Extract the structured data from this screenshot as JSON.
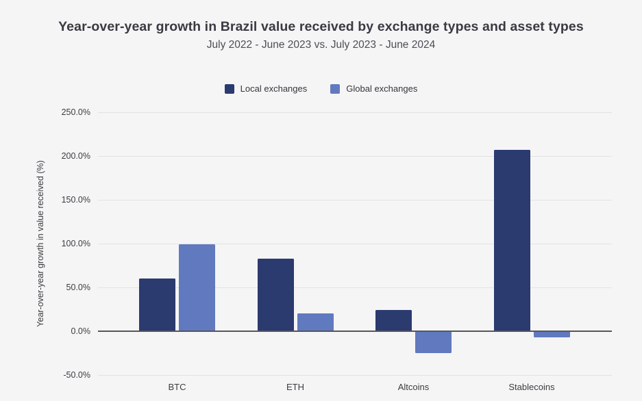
{
  "header": {
    "title": "Year-over-year growth in Brazil value received by exchange types and asset types",
    "subtitle": "July 2022 - June 2023 vs. July 2023 - June 2024"
  },
  "chart_data": {
    "type": "bar",
    "title": "Year-over-year growth in Brazil value received by exchange types and asset types",
    "subtitle": "July 2022 - June 2023 vs. July 2023 - June 2024",
    "categories": [
      "BTC",
      "ETH",
      "Altcoins",
      "Stablecoins"
    ],
    "series": [
      {
        "name": "Local exchanges",
        "color": "#2b3a6f",
        "values": [
          60,
          83,
          24,
          207
        ]
      },
      {
        "name": "Global exchanges",
        "color": "#6179be",
        "values": [
          99,
          20,
          -25,
          -7
        ]
      }
    ],
    "xlabel": "",
    "ylabel": "Year-over-year growth in value received (%)",
    "ylim": [
      -50,
      250
    ],
    "ytick_step": 50,
    "ytick_format": "one_decimal_percent",
    "grid": true,
    "legend_position": "top-center"
  },
  "colors": {
    "background": "#f5f5f6",
    "gridline": "#e2e2e4",
    "zero_axis": "#56565a",
    "title_text": "#3a3a43",
    "subtitle_text": "#4c4c54",
    "tick_text": "#3c3c40"
  }
}
